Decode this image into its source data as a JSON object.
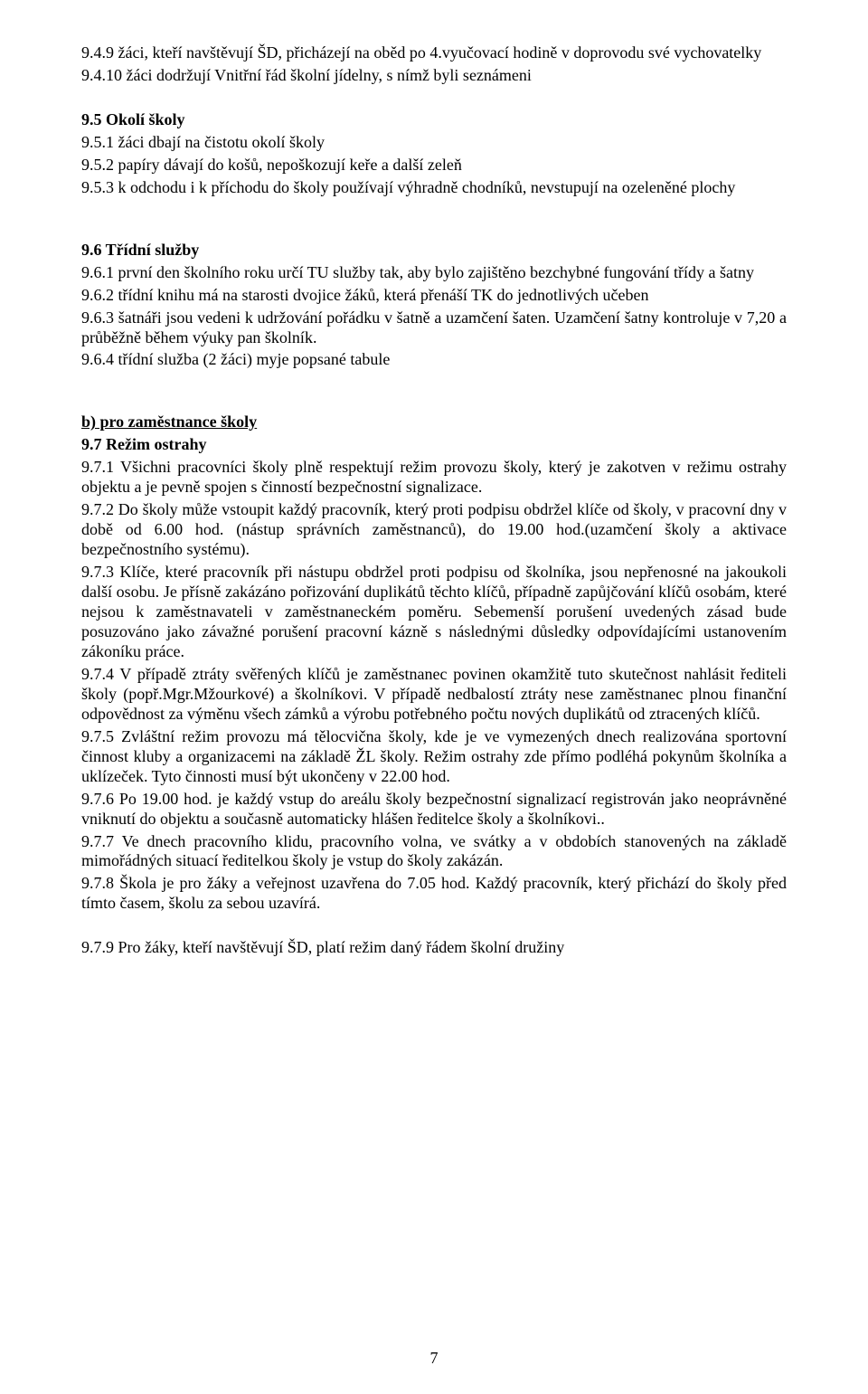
{
  "p9_4_9": "9.4.9  žáci, kteří navštěvují ŠD, přicházejí na oběd po 4.vyučovací hodině v doprovodu své vychovatelky",
  "p9_4_10": "9.4.10 žáci dodržují Vnitřní řád školní jídelny, s nímž byli seznámeni",
  "h9_5": "9.5    Okolí školy",
  "p9_5_1": "9.5.1  žáci dbají na čistotu okolí školy",
  "p9_5_2": "9.5.2  papíry dávají do košů, nepoškozují keře a další zeleň",
  "p9_5_3": "9.5.3 k odchodu i k příchodu do školy používají výhradně chodníků, nevstupují na ozeleněné plochy",
  "h9_6": "9.6    Třídní služby",
  "p9_6_1": "9.6.1  první den školního roku určí TU služby tak, aby bylo zajištěno bezchybné fungování třídy a šatny",
  "p9_6_2": "9.6.2  třídní knihu má na starosti dvojice žáků, která přenáší TK do jednotlivých učeben",
  "p9_6_3": "9.6.3  šatnáři  jsou vedeni k udržování  pořádku v šatně a uzamčení šaten. Uzamčení šatny kontroluje v 7,20 a průběžně během výuky pan školník.",
  "p9_6_4": "9.6.4  třídní služba (2 žáci)  myje popsané tabule",
  "hb": "b) pro zaměstnance školy",
  "h9_7": "9.7    Režim ostrahy",
  "p9_7_1": "9.7.1 Všichni pracovníci školy plně respektují režim provozu školy, který je zakotven v režimu ostrahy objektu a je pevně spojen s činností bezpečnostní signalizace.",
  "p9_7_2": "9.7.2  Do školy může vstoupit každý pracovník,  který proti podpisu obdržel klíče od školy, v pracovní dny v době od 6.00 hod. (nástup správních zaměstnanců), do 19.00 hod.(uzamčení školy a aktivace bezpečnostního systému).",
  "p9_7_3": "9.7.3  Klíče, které pracovník při nástupu obdržel proti podpisu od školníka, jsou nepřenosné na jakoukoli další osobu. Je přísně zakázáno pořizování duplikátů těchto klíčů, případně zapůjčování klíčů osobám, které nejsou k zaměstnavateli v zaměstnaneckém poměru. Sebemenší porušení uvedených zásad bude posuzováno jako závažné porušení pracovní kázně s následnými důsledky odpovídajícími ustanovením zákoníku práce.",
  "p9_7_4": "9.7.4  V případě ztráty svěřených klíčů je zaměstnanec povinen okamžitě tuto skutečnost nahlásit řediteli školy (popř.Mgr.Mžourkové) a školníkovi. V případě nedbalostí ztráty nese zaměstnanec plnou finanční odpovědnost za výměnu všech zámků a výrobu potřebného počtu nových duplikátů od ztracených klíčů.",
  "p9_7_5": "9.7.5  Zvláštní režim provozu má tělocvična školy, kde je ve vymezených dnech realizována sportovní činnost kluby a organizacemi na základě ŽL školy. Režim ostrahy zde přímo podléhá pokynům školníka a uklízeček.  Tyto činnosti musí být ukončeny v 22.00 hod.",
  "p9_7_6": "9.7.6   Po 19.00 hod. je každý vstup do areálu školy bezpečnostní signalizací registrován jako neoprávněné vniknutí do objektu a současně automaticky hlášen ředitelce školy a školníkovi..",
  "p9_7_7": "9.7.7  Ve dnech pracovního klidu, pracovního volna, ve svátky a v obdobích stanovených na základě mimořádných situací ředitelkou školy je vstup do školy zakázán.",
  "p9_7_8": "9.7.8  Škola je pro žáky a veřejnost uzavřena do 7.05 hod. Každý pracovník, který přichází do školy před tímto časem, školu za sebou uzavírá.",
  "p9_7_9": "9.7.9   Pro žáky, kteří navštěvují ŠD, platí režim daný řádem školní družiny",
  "pageNumber": "7"
}
